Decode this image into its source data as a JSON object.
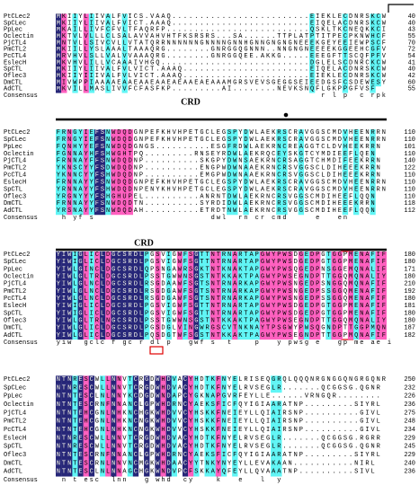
{
  "blocks": [
    {
      "rows": [
        {
          "name": "PtCLec2",
          "seq": "MKIIYLIIVALFVICS.VAAQ.........................EIEKLECDNRSKCW",
          "end": "40"
        },
        {
          "name": "SpCLec",
          "seq": "MKIIYLIIVALFVICT.AAAQ.........................EIQELACDNRSKCW",
          "end": "40"
        },
        {
          "name": "PpLec",
          "seq": "MKAILLIVFCFVLTFAQRFP..........................QSKLTKCNEQKKCI",
          "end": "43"
        },
        {
          "name": "Oclectin",
          "seq": "MKTVLVLLLCLSALAVVAHVHTFKSRSRS...SA......TTPLATPTITPECPKNWHCF",
          "end": "55"
        },
        {
          "name": "PjCTL4",
          "seq": "MNTVLLSIVCVLLVTATQRRNNNNNNGNNNNGNNHGNNGNGNGNEEEKGEYEEIEWPSCF",
          "end": "70"
        },
        {
          "name": "PmCTL2",
          "seq": "MKIILLYSLAAALTAAAQRG........GNRGGQGNNN..NNGNGNEEEEKGGEEHCGFV",
          "end": "72"
        },
        {
          "name": "PcCTL4",
          "seq": "MRVHVLSLLVALVVAAAQRG........GNRGGQEE.AKKG.....EEEGFTTSCQFPFV",
          "end": "54"
        },
        {
          "name": "EslecH",
          "seq": "MKVHVLILLVCAAAIVHGQ...........................DGLELSCDNRCKCW",
          "end": "41"
        },
        {
          "name": "SpCTL",
          "seq": "MKIIYLIIVALFVLVICT.AAAQ.......................EIQELACDNRSKCW",
          "end": "40"
        },
        {
          "name": "Oflec3",
          "seq": "MKIIYIIIVALFVLVICT.AAAQ.......................EIEKLECDNRSKCW",
          "end": "42"
        },
        {
          "name": "DmCTL",
          "seq": "MIVWPPIAAAAEAAEAAEAAEAEAAEAEAAAMGRSVEVSGEGGSEIEEDGSFCSDEWESY",
          "end": "60"
        },
        {
          "name": "AdCTL",
          "seq": "MKVILLMASLIVVFCFASFKP.........AI........NEVKSNQFLGKPPGFVSF",
          "end": "55"
        }
      ],
      "consensus": {
        "name": "Consensus",
        "seq": "                                                r l p  c rpk"
      }
    },
    {
      "rows": [
        {
          "name": "PtCLec2",
          "seq": "FRNGYIEFSNWDQDGNPEFKHVHPETGCLEGSPYDWLAEKRSCRAVGGSCMDVHEENRRN",
          "end": "110"
        },
        {
          "name": "SpCLec",
          "seq": "FRNGYIEFSNWDQDGNPEFKHVHPETGCLEGSPYDWLAEKRSCRAVGGSCMDVHEENRRN",
          "end": "110"
        },
        {
          "name": "PpLec",
          "seq": "FQNHYYEFSNWDQDGNGS..........ESGFRDWLAEKRNCREAGGTCLDVHEEKRRN",
          "end": "101"
        },
        {
          "name": "Oclectin",
          "seq": "FGNNAYHFSHWGHTPQ.........RNSEYRDWLAEKRQCEYSKGTCYMDIEEFLQEN",
          "end": "110"
        },
        {
          "name": "PjCTL4",
          "seq": "FRNNAYFFSNWDQDNP..........SKGPYDWNSAEKRNCRSAGGTCHMDIFEEKRRN",
          "end": "140"
        },
        {
          "name": "PmCTL2",
          "seq": "YKNSCYYFSDWDQDNP..........ENGPWDWNAAEKRNCRSVGGSCLDIHEEEKRRN",
          "end": "122"
        },
        {
          "name": "PcCTL4",
          "seq": "YKNNCYYFSHWDQDNP..........EMGPWDWNAAEKRNCRSVGGSCLDIHEEEKRRN",
          "end": "110"
        },
        {
          "name": "EslecH",
          "seq": "FRNNAYYFSNWDQDGNPEFKHVHPETGCLEGSPYDWLAEKRSCRAVGGSCMDVHEENRRN",
          "end": "110"
        },
        {
          "name": "SpCTL",
          "seq": "YRNNAYYFSHWDQDNPENYKHVHPETGCLEGSPYDWLAEKRSCRAVGGSCMDVHEENRRN",
          "end": "110"
        },
        {
          "name": "Oflec3",
          "seq": "YRGNYYYFSHGHUPEL..........ANRNTDWLAEKRNCRSVGGSCMDIHEEFLQQN",
          "end": "110"
        },
        {
          "name": "DmCTL",
          "seq": "FRNNAYYFSNWDQDTN..........SYRDIDWLAEKRNCRSVGGSCMDIHEEEKRRN",
          "end": "118"
        },
        {
          "name": "AdCTL",
          "seq": "YRSNAYYFSNWDQDAH..........ETRDTNWLAEKRNCRSVGGSCMDIHEEFLQQN",
          "end": "112"
        }
      ],
      "consensus": {
        "name": "Consensus",
        "seq": " h yf s                     dwl  rn cr cmd     e   en      "
      }
    },
    {
      "rows": [
        {
          "name": "PtCLec2",
          "seq": "YIWIGLICLDGCSRDLPGSVIGWFSGTTNTRNARTAPGWYPWSDGEDPGTGGPMENAFIF",
          "end": "180"
        },
        {
          "name": "SpCLec",
          "seq": "YIWIGLICLDGCSRDLPGSVIGWFSGTTNTRNARTAPGWYPWSDGEDPGTGGPMENAFIF",
          "end": "180"
        },
        {
          "name": "PpLec",
          "seq": "YIWLGINCLDGCSRDLQPSNGAWRSGKTNTKNAKTAPGWYPWSQGEDPNSGGEMQNALIF",
          "end": "171"
        },
        {
          "name": "Oclectin",
          "seq": "YIWLGLTRLDGCSRDLPSSTGWWNSGSTNTKKAKTPAGWYPWSEGNDPTTGGQMQNALIY",
          "end": "180"
        },
        {
          "name": "PjCTL4",
          "seq": "YIWLGLNCLDGCSRDLRSGDAAWFSGTSNTRNARKAPGWYPWSNGEDPSNGGQMQNAFIF",
          "end": "210"
        },
        {
          "name": "PmCTL2",
          "seq": "YIWLGLNCLDGCSRDLRSGDGAWFSGTSNTRNARKAPGWYPWSNGEDPSSGGQMENAFIF",
          "end": "192"
        },
        {
          "name": "PcCTL4",
          "seq": "YIWLGLNCLDGCSRDLRSGDGAWFSGTSNTRNARKAPGWYPWSNGEDPSSGGQMENAFIF",
          "end": "180"
        },
        {
          "name": "EslecH",
          "seq": "YIWIGLICLDGCSRDLPGSVIGWFSGTTNTRNARTAPGWYPWSDGEDPGTGGPMENAFIF",
          "end": "181"
        },
        {
          "name": "SpCTL",
          "seq": "YIWIGLICLDGCSRDLPGSVIGWFSGTTNTRNARTAPGWYPWSDGEDPGTGGPMENAFIF",
          "end": "180"
        },
        {
          "name": "Oflec3",
          "seq": "YIWLGLTRLNGCSRDLPSSTGWWNSGSTNTKKAKTPAGWYPWSEGNDPTTGGQMQNALIY",
          "end": "180"
        },
        {
          "name": "DmCTL",
          "seq": "YIWLGLICLDGCSRDLPGSDGLVINGWRGSCVTNKNAYTPSGWYPWSQGNDPTTGGPMQN",
          "end": "187"
        },
        {
          "name": "AdCTL",
          "seq": "YIWLGLICLDGCSRDLPQSDGTWFSGSTNTKKAKTPAGWYPWSEGNDPTTGGPMQNAFIF",
          "end": "182"
        }
      ],
      "consensus": {
        "name": "Consensus",
        "seq": "yiw  gclc f gc r dl p   gwf s  t    p   y pwsg e   gp me ae i"
      }
    },
    {
      "rows": [
        {
          "name": "PtCLec2",
          "seq": "NTNRESCWLLNNVTCRGDWHDVACYHDTKFNYELRISEQGRQLQQQNRGNGGQNGRGQNR",
          "end": "250"
        },
        {
          "name": "SpCLec",
          "seq": "NTNRESCWLLNNVTCRGDWHDVACYHDTKFNYELRVSEGLR.......QCGGSG.QGNR",
          "end": "232"
        },
        {
          "name": "PpLec",
          "seq": "NTNTESCLNLNNYKCDGDWNDAPCYGKNAPGVRFEYLLE......VRNGQR........",
          "end": "226"
        },
        {
          "name": "Oclectin",
          "seq": "NTNTESCRNFNNANCLGPWHDRNCYAEKSFICFQYIGIAARATNP.........SIYRL",
          "end": "236"
        },
        {
          "name": "PjCTL4",
          "seq": "NTNTEHCGNLNHKNCHGKWHDVVCYHSKKFNEIEYLLQIAIRSNP..........GIVL",
          "end": "275"
        },
        {
          "name": "PmCTL2",
          "seq": "NTNTEHCGNLNHKNCNGKWHDVVCYHSKKFNEIEYLLQIAIRSNP..........GIVL",
          "end": "248"
        },
        {
          "name": "PcCTL4",
          "seq": "NTNTEHCGNLNHKNCNGKWHDVVCYHSKKFNEIEYLLQIAIRSNP..........GIVL",
          "end": "234"
        },
        {
          "name": "EslecH",
          "seq": "NTNRESCWLLNNVTCRGDWHDVACYHDTKFNYELRVSEGLR.......QCGGSG.RGRR",
          "end": "229"
        },
        {
          "name": "SpCTL",
          "seq": "NTNRESCWLLNNVTCRGDWHDVACYHDTKFNYELRVSEGLR.......QCGGSG.QGNR",
          "end": "245"
        },
        {
          "name": "Oflec3",
          "seq": "NTNTESCRNFNNANCLGPWHDRNCYAEKSFICFQYIGIAARATNP.........SIYRL",
          "end": "229"
        },
        {
          "name": "DmCTL",
          "seq": "NTNTESCRNLNNVNCMGKWHDAACYYTNKYNYEYLLEVAKAAN...........NIRL",
          "end": "240"
        },
        {
          "name": "AdCTL",
          "seq": "NTNTESCLNLNNAGCHGKWNDVPCFSKKAYQFEYLLQVAAATNP..........SIVL",
          "end": "236"
        }
      ],
      "consensus": {
        "name": "Consensus",
        "seq": " n t esc  lnn   g whd  cy    k   e   l  y                    "
      }
    }
  ],
  "annotations": {
    "crd_1": "CRD",
    "crd_2": "CRD"
  }
}
